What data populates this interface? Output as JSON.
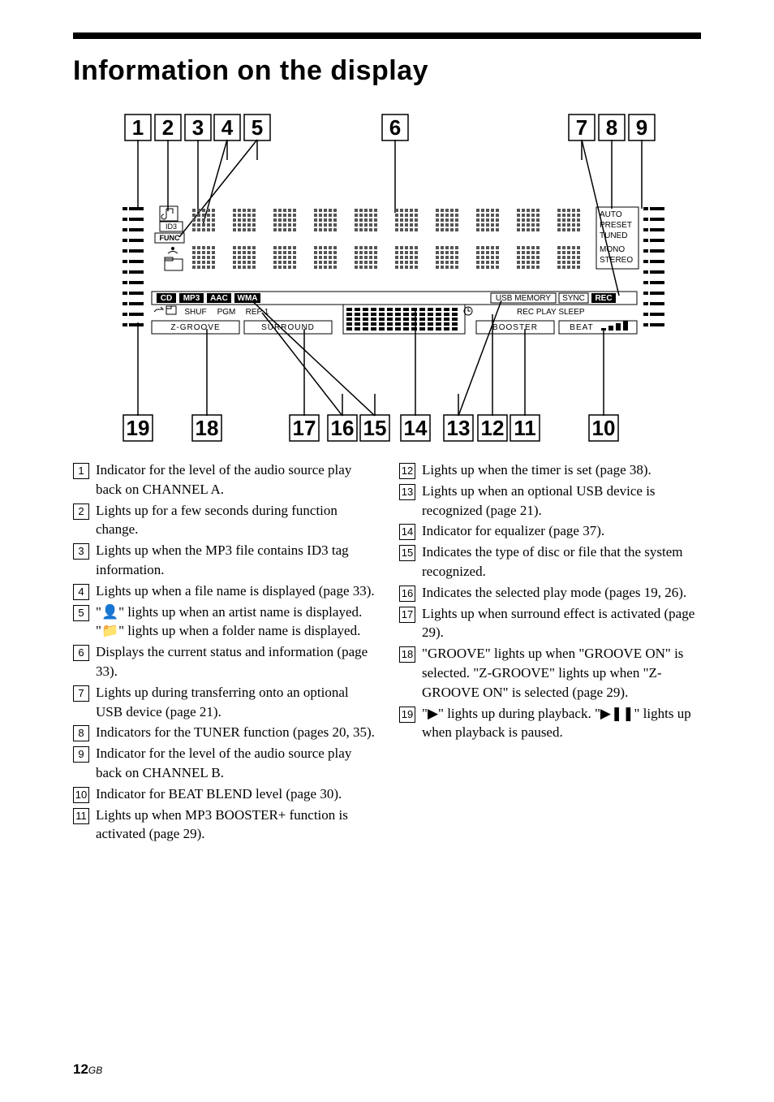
{
  "page": {
    "number": "12",
    "suffix": "GB"
  },
  "title": "Information on the display",
  "top_callouts": [
    "1",
    "2",
    "3",
    "4",
    "5",
    "6",
    "7",
    "8",
    "9"
  ],
  "bottom_callouts": [
    "19",
    "18",
    "17",
    "16",
    "15",
    "14",
    "13",
    "12",
    "11",
    "10"
  ],
  "display": {
    "left_tags": {
      "id3": "ID3",
      "func": "FUNC"
    },
    "right_tags": {
      "auto": "AUTO",
      "preset": "PRESET",
      "tuned": "TUNED",
      "mono": "MONO",
      "stereo": "STEREO"
    },
    "row_cd": {
      "cd": "CD",
      "mp3": "MP3",
      "aac": "AAC",
      "wma": "WMA",
      "usb": "USB MEMORY",
      "sync": "SYNC",
      "rec": "REC"
    },
    "row_mid": {
      "shuf": "SHUF",
      "pgm": "PGM",
      "rep": "REP 1",
      "recplay": "REC PLAY SLEEP"
    },
    "row_bot": {
      "zgroove": "Z-GROOVE",
      "surround": "SURROUND",
      "booster": "BOOSTER",
      "beat": "BEAT"
    },
    "colors": {
      "stroke": "#000000",
      "fill_dark": "#000000",
      "fill_light": "#ffffff",
      "grid": "#777777"
    }
  },
  "left": [
    {
      "n": "1",
      "t": "Indicator for the level of the audio source play back on CHANNEL A."
    },
    {
      "n": "2",
      "t": "Lights up for a few seconds during function change."
    },
    {
      "n": "3",
      "t": "Lights up when the MP3 file contains ID3 tag information."
    },
    {
      "n": "4",
      "t": "Lights up when a file name is displayed (page 33)."
    },
    {
      "n": "5",
      "t": "\"👤\" lights up when an artist name is displayed. \"📁\" lights up when a folder name is displayed."
    },
    {
      "n": "6",
      "t": "Displays the current status and information (page 33)."
    },
    {
      "n": "7",
      "t": "Lights up during transferring onto an optional USB device (page 21)."
    },
    {
      "n": "8",
      "t": "Indicators for the TUNER function (pages 20, 35)."
    },
    {
      "n": "9",
      "t": "Indicator for the level of the audio source play back on CHANNEL B."
    },
    {
      "n": "10",
      "t": "Indicator for BEAT BLEND level (page 30)."
    },
    {
      "n": "11",
      "t": "Lights up when MP3 BOOSTER+ function is activated (page 29)."
    }
  ],
  "right": [
    {
      "n": "12",
      "t": "Lights up when the timer is set (page 38)."
    },
    {
      "n": "13",
      "t": "Lights up when an optional USB device is recognized (page 21)."
    },
    {
      "n": "14",
      "t": "Indicator for equalizer (page 37)."
    },
    {
      "n": "15",
      "t": "Indicates the type of disc or file that the system recognized."
    },
    {
      "n": "16",
      "t": "Indicates the selected play mode (pages 19, 26)."
    },
    {
      "n": "17",
      "t": "Lights up when surround effect is activated (page 29)."
    },
    {
      "n": "18",
      "t": "\"GROOVE\" lights up when \"GROOVE ON\" is selected. \"Z-GROOVE\" lights up when \"Z-GROOVE ON\" is selected (page 29)."
    },
    {
      "n": "19",
      "t": "\"▶\" lights up during playback. \"▶❚❚\" lights up when playback is paused."
    }
  ]
}
